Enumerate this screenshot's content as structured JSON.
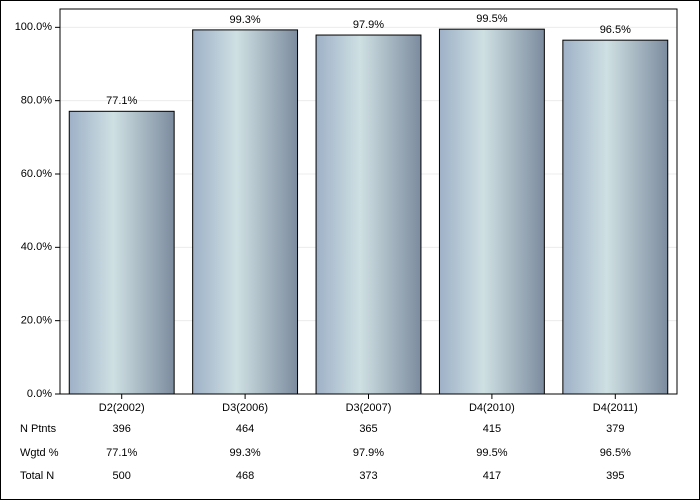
{
  "chart_data": {
    "type": "bar",
    "categories": [
      "D2(2002)",
      "D3(2006)",
      "D3(2007)",
      "D4(2010)",
      "D4(2011)"
    ],
    "values": [
      77.1,
      99.3,
      97.9,
      99.5,
      96.5
    ],
    "value_labels": [
      "77.1%",
      "99.3%",
      "97.9%",
      "99.5%",
      "96.5%"
    ],
    "color": "#9eb1c7",
    "ylim": [
      0,
      105
    ],
    "yticks": [
      {
        "value": 0,
        "label": "0.0%"
      },
      {
        "value": 20,
        "label": "20.0%"
      },
      {
        "value": 40,
        "label": "40.0%"
      },
      {
        "value": 60,
        "label": "60.0%"
      },
      {
        "value": 80,
        "label": "80.0%"
      },
      {
        "value": 100,
        "label": "100.0%"
      }
    ],
    "grid": true,
    "table": {
      "rows": [
        {
          "label": "N Ptnts",
          "values": [
            396,
            464,
            365,
            415,
            379
          ]
        },
        {
          "label": "Wgtd %"
        },
        {
          "label": "Total N",
          "values": [
            500,
            468,
            373,
            417,
            395
          ]
        }
      ]
    }
  }
}
